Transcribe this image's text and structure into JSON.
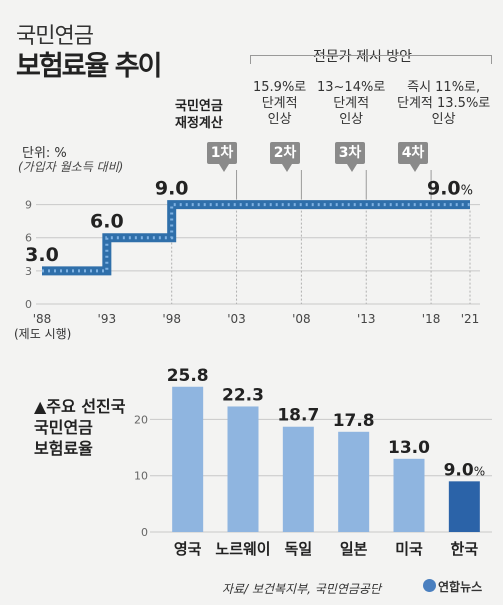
{
  "title": {
    "line1": "국민연금",
    "line2": "보험료율 추이"
  },
  "proposals_header": "전문가 제시 방안",
  "stages": [
    {
      "box": "1차",
      "desc_lines": [
        "국민연금",
        "재정계산"
      ]
    },
    {
      "box": "2차",
      "desc_lines": [
        "15.9%로",
        "단계적",
        "인상"
      ]
    },
    {
      "box": "3차",
      "desc_lines": [
        "13~14%로",
        "단계적",
        "인상"
      ]
    },
    {
      "box": "4차",
      "desc_lines": [
        "즉시 11%로,",
        "단계적 13.5%로",
        "인상"
      ]
    }
  ],
  "unit_label": "단위: %",
  "unit_note": "(가입자 월소득 대비)",
  "first_year_note": "(제도 시행)",
  "legend_title": "▲주요 선진국\n국민연금\n보험료율",
  "source": "자료/ 보건복지부, 국민연금공단",
  "brand": "연합뉴스",
  "chart_data": [
    {
      "type": "line",
      "title": "국민연금 보험료율 추이",
      "ylabel": "단위: %",
      "step": true,
      "x_ticks": [
        "'88",
        "'93",
        "'98",
        "'03",
        "'08",
        "'13",
        "'18",
        "'21"
      ],
      "x": [
        1988,
        1993,
        1998,
        2003,
        2008,
        2013,
        2018,
        2021
      ],
      "y_ticks": [
        0,
        3,
        6,
        9
      ],
      "ylim": [
        0,
        10.5
      ],
      "series": [
        {
          "values": [
            3.0,
            6.0,
            9.0,
            9.0,
            9.0,
            9.0,
            9.0,
            9.0
          ]
        }
      ],
      "data_labels": [
        {
          "x": 1988,
          "text": "3.0"
        },
        {
          "x": 1993,
          "text": "6.0"
        },
        {
          "x": 1998,
          "text": "9.0"
        },
        {
          "x": 2021,
          "text": "9.0",
          "suffix": "%"
        }
      ],
      "stage_years": [
        2003,
        2008,
        2013,
        2018
      ],
      "grid": true,
      "colors": {
        "line": "#2f6faa",
        "line_dots": "#7fb2e3",
        "grid": "#c8c8c8"
      }
    },
    {
      "type": "bar",
      "title": "주요 선진국 국민연금 보험료율",
      "categories": [
        "영국",
        "노르웨이",
        "독일",
        "일본",
        "미국",
        "한국"
      ],
      "values": [
        25.8,
        22.3,
        18.7,
        17.8,
        13.0,
        9.0
      ],
      "labels": [
        "25.8",
        "22.3",
        "18.7",
        "17.8",
        "13.0",
        "9.0"
      ],
      "highlight_suffix": "%",
      "y_ticks": [
        0,
        10,
        20
      ],
      "ylim": [
        0,
        27
      ],
      "grid": true,
      "colors": {
        "bar": "#8fb5e0",
        "highlight": "#2b63a8",
        "grid": "#c8c8c8"
      }
    }
  ]
}
